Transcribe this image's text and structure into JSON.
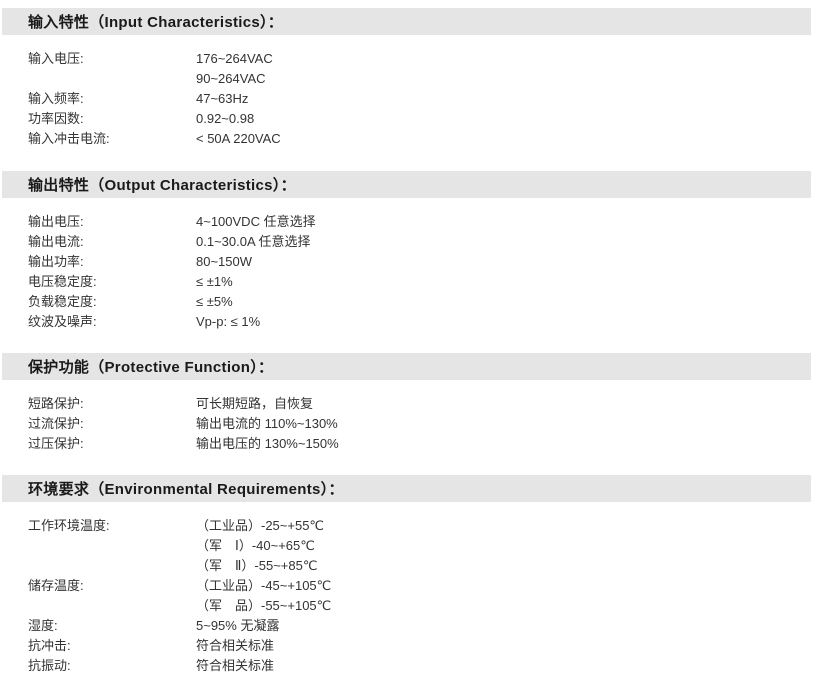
{
  "colors": {
    "page_bg": "#ffffff",
    "header_bg": "#e5e5e5",
    "header_text": "#1a1a1a",
    "body_text": "#333333"
  },
  "sections": [
    {
      "title": "输入特性（Input Characteristics）：",
      "rows": [
        {
          "label": "输入电压:",
          "values": [
            "176~264VAC",
            "90~264VAC"
          ]
        },
        {
          "label": "输入频率:",
          "values": [
            "47~63Hz"
          ]
        },
        {
          "label": "功率因数:",
          "values": [
            "0.92~0.98"
          ]
        },
        {
          "label": "输入冲击电流:",
          "values": [
            "< 50A 220VAC"
          ]
        }
      ]
    },
    {
      "title": "输出特性（Output Characteristics）：",
      "rows": [
        {
          "label": "输出电压:",
          "values": [
            "4~100VDC 任意选择"
          ]
        },
        {
          "label": "输出电流:",
          "values": [
            "0.1~30.0A 任意选择"
          ]
        },
        {
          "label": "输出功率:",
          "values": [
            "80~150W"
          ]
        },
        {
          "label": "电压稳定度:",
          "values": [
            "≤ ±1%"
          ]
        },
        {
          "label": "负载稳定度:",
          "values": [
            "≤ ±5%"
          ]
        },
        {
          "label": "纹波及噪声:",
          "values": [
            "Vp-p: ≤ 1%"
          ]
        }
      ]
    },
    {
      "title": "保护功能（Protective Function）：",
      "rows": [
        {
          "label": "短路保护:",
          "values": [
            "可长期短路，自恢复"
          ]
        },
        {
          "label": "过流保护:",
          "values": [
            "输出电流的 110%~130%"
          ]
        },
        {
          "label": "过压保护:",
          "values": [
            "输出电压的 130%~150%"
          ]
        }
      ]
    },
    {
      "title": "环境要求（Environmental Requirements）：",
      "rows": [
        {
          "label": "工作环境温度:",
          "values": [
            "（工业品）-25~+55℃",
            "（军　Ⅰ）-40~+65℃",
            "（军　Ⅱ）-55~+85℃"
          ]
        },
        {
          "label": "储存温度:",
          "values": [
            "（工业品）-45~+105℃",
            "（军　品）-55~+105℃"
          ]
        },
        {
          "label": "湿度:",
          "values": [
            "5~95% 无凝露"
          ]
        },
        {
          "label": "抗冲击:",
          "values": [
            "符合相关标准"
          ]
        },
        {
          "label": "抗振动:",
          "values": [
            "符合相关标准"
          ]
        }
      ]
    }
  ]
}
